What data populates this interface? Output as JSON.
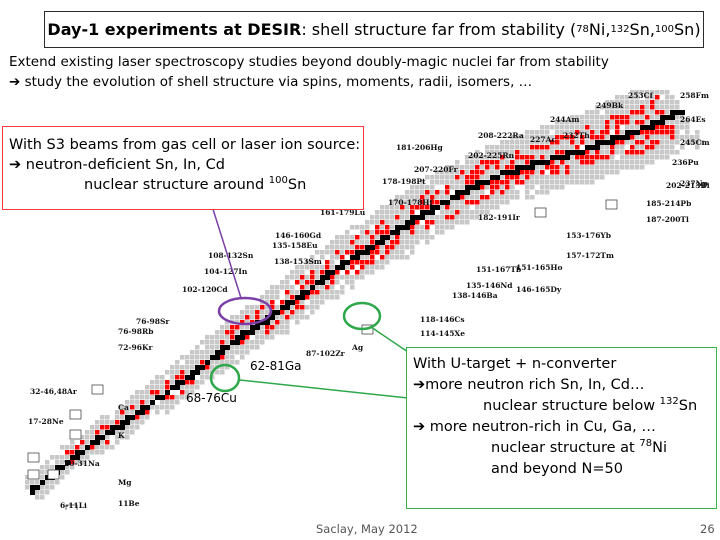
{
  "title": {
    "bold": "Day-1 experiments at DESIR",
    "rest": ": shell structure far from stability (",
    "nuclides": [
      {
        "mass": "78",
        "sym": "Ni"
      },
      {
        "mass": "132",
        "sym": "Sn"
      },
      {
        "mass": "100",
        "sym": "Sn"
      }
    ],
    "sep": ", ",
    "close": ")"
  },
  "intro": {
    "line1": "Extend existing laser spectroscopy studies beyond doubly-magic nuclei far from stability",
    "line2": " study the evolution of shell structure via spins, moments, radii, isomers, …"
  },
  "callout_left": {
    "line1": "With S3 beams from gas cell or laser ion source:",
    "line2": " neutron-deficient Sn, In, Cd",
    "line3_pre": "nuclear structure around ",
    "line3_mass": "100",
    "line3_sym": "Sn"
  },
  "callout_right": {
    "line1": "With U-target + n-converter",
    "line2": "more neutron rich Sn, In, Cd…",
    "line3_pre": "nuclear structure below ",
    "line3_mass": "132",
    "line3_sym": "Sn",
    "line4": " more neutron-rich in Cu, Ga, …",
    "line5_pre": "nuclear structure at ",
    "line5_mass": "78",
    "line5_sym": "Ni",
    "line6": "and beyond N=50"
  },
  "chart_labels": {
    "ga": "62-81Ga",
    "cu": "68-76Cu"
  },
  "element_labels": [
    {
      "text": "249Bk"
    },
    {
      "text": "253Cf"
    },
    {
      "text": "258Fm"
    },
    {
      "text": "244Am"
    },
    {
      "text": "264Es"
    },
    {
      "text": "208-222Ra"
    },
    {
      "text": "227Ac"
    },
    {
      "text": "232Th"
    },
    {
      "text": "245Cm"
    },
    {
      "text": "181-206Hg"
    },
    {
      "text": "202-225Rn"
    },
    {
      "text": "236Pu"
    },
    {
      "text": "202-213Bi"
    },
    {
      "text": "207-220Fr"
    },
    {
      "text": "178-198Pt"
    },
    {
      "text": "237Np"
    },
    {
      "text": "185-214Pb"
    },
    {
      "text": "170-178Hf"
    },
    {
      "text": "187-200Tl"
    },
    {
      "text": "161-179Lu"
    },
    {
      "text": "182-191Ir"
    },
    {
      "text": "146-160Gd"
    },
    {
      "text": "153-176Yb"
    },
    {
      "text": "135-158Eu"
    },
    {
      "text": "157-172Tm"
    },
    {
      "text": "138-153Sm"
    },
    {
      "text": "108-132Sn"
    },
    {
      "text": "104-127In"
    },
    {
      "text": "151-167Tb"
    },
    {
      "text": "151-165Ho"
    },
    {
      "text": "102-120Cd"
    },
    {
      "text": "135-146Nd"
    },
    {
      "text": "146-165Dy"
    },
    {
      "text": "138-146Ba"
    },
    {
      "text": "76-98Sr"
    },
    {
      "text": "76-98Rb"
    },
    {
      "text": "118-146Cs"
    },
    {
      "text": "114-145Xe"
    },
    {
      "text": "72-96Kr"
    },
    {
      "text": "Ag"
    },
    {
      "text": "87-102Zr"
    },
    {
      "text": "32-46,48Ar"
    },
    {
      "text": "17-28Ne"
    },
    {
      "text": "Ca"
    },
    {
      "text": "K"
    },
    {
      "text": "20-31Na"
    },
    {
      "text": "Mg"
    },
    {
      "text": "11Be"
    },
    {
      "text": "6-11Li"
    }
  ],
  "footer": {
    "center": "Saclay, May 2012",
    "page": "26"
  },
  "colors": {
    "callout_left_border": "#ff3a3a",
    "callout_right_border": "#3cb043",
    "ellipse_purple": "#7b3fa8",
    "ellipse_green": "#2ea84a",
    "stable": "#000000",
    "measured": "#ff0000",
    "known": "#c8c8c8"
  }
}
